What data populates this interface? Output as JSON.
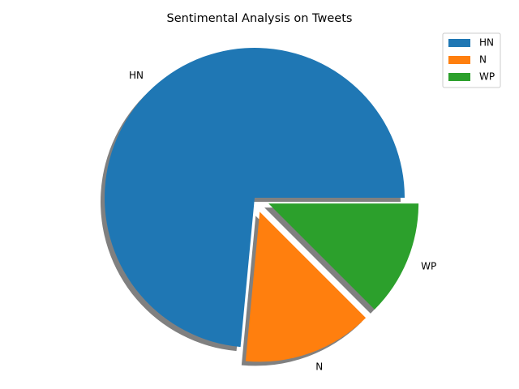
{
  "chart_data": {
    "type": "pie",
    "title": "Sentimental Analysis on  Tweets",
    "slices": [
      {
        "label": "HN",
        "value": 73.5,
        "color": "#1f77b4",
        "explode": 0.0
      },
      {
        "label": "N",
        "value": 14.0,
        "color": "#ff7f0e",
        "explode": 0.1
      },
      {
        "label": "WP",
        "value": 12.5,
        "color": "#2ca02c",
        "explode": 0.1
      }
    ],
    "legend": {
      "entries": [
        "HN",
        "N",
        "WP"
      ],
      "position": "top-right"
    },
    "start_angle": 0,
    "direction": "counterclockwise",
    "shadow": true,
    "shadow_color": "#808080"
  }
}
